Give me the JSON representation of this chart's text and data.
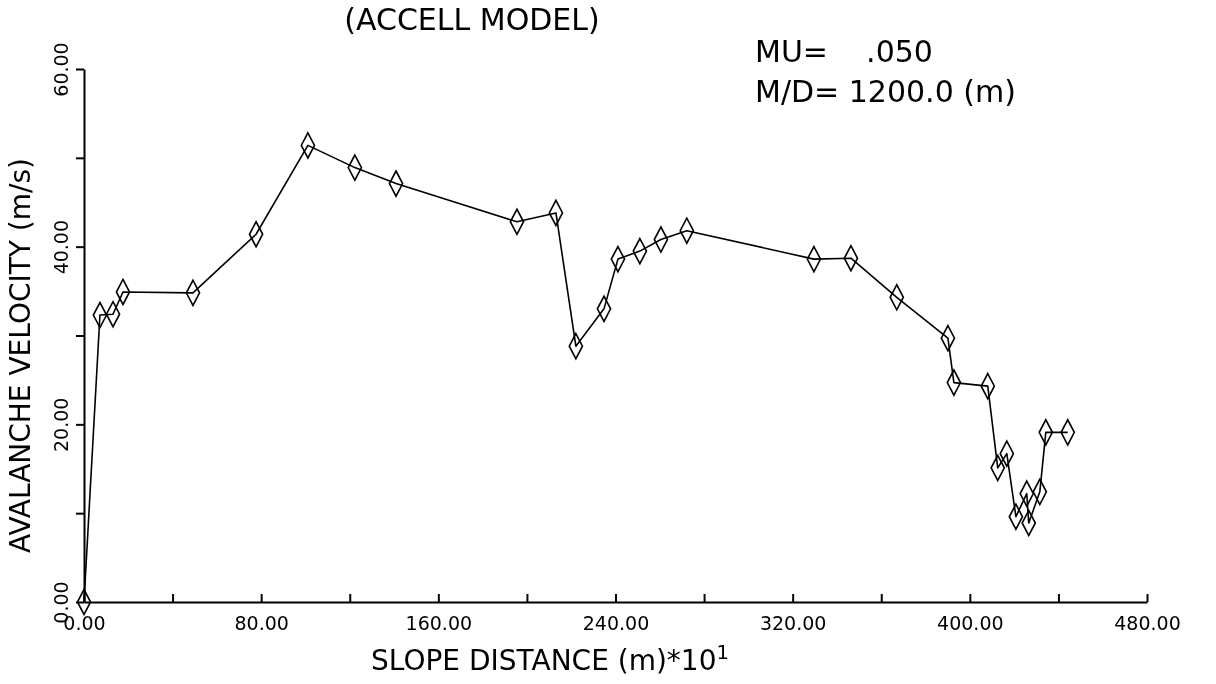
{
  "chart_data": {
    "type": "line",
    "title": "(ACCELL MODEL)",
    "xlabel": "SLOPE DISTANCE (m)*10$^{1}$",
    "ylabel": "AVALANCHE VELOCITY (m/s)",
    "annotations": [
      "MU=    .050",
      "M/D= 1200.0 (m)"
    ],
    "xlim": [
      0,
      480
    ],
    "ylim": [
      0,
      60
    ],
    "xticks": [
      {
        "value": 0,
        "label": "0.00"
      },
      {
        "value": 40,
        "label": null
      },
      {
        "value": 80,
        "label": "80.00"
      },
      {
        "value": 120,
        "label": null
      },
      {
        "value": 160,
        "label": "160.00"
      },
      {
        "value": 200,
        "label": null
      },
      {
        "value": 240,
        "label": "240.00"
      },
      {
        "value": 280,
        "label": null
      },
      {
        "value": 320,
        "label": "320.00"
      },
      {
        "value": 360,
        "label": null
      },
      {
        "value": 400,
        "label": "400.00"
      },
      {
        "value": 440,
        "label": null
      },
      {
        "value": 480,
        "label": "480.00"
      }
    ],
    "yticks": [
      {
        "value": 0,
        "label": "0.00"
      },
      {
        "value": 10,
        "label": null
      },
      {
        "value": 20,
        "label": "20.00"
      },
      {
        "value": 30,
        "label": null
      },
      {
        "value": 40,
        "label": "40.00"
      },
      {
        "value": 50,
        "label": null
      },
      {
        "value": 60,
        "label": "60.00"
      }
    ],
    "marker": "diamond",
    "grid": false,
    "series": [
      {
        "color": "#000000",
        "x": [
          0,
          7.2,
          13.1,
          17.6,
          49.2,
          77.7,
          101.1,
          122.3,
          140.9,
          195.5,
          213.1,
          222.1,
          234.8,
          241.1,
          251.0,
          260.5,
          272.2,
          329.6,
          346.3,
          367.0,
          390.1,
          392.8,
          408.1,
          412.6,
          416.7,
          420.8,
          425.7,
          426.6,
          431.6,
          434.3,
          444.2
        ],
        "values": [
          0,
          32.3,
          32.4,
          34.9,
          34.8,
          41.4,
          51.4,
          48.9,
          47.1,
          42.8,
          43.8,
          28.8,
          33.0,
          38.6,
          39.5,
          40.8,
          41.8,
          38.6,
          38.7,
          34.3,
          29.7,
          24.7,
          24.3,
          15.1,
          16.7,
          9.6,
          12.2,
          8.9,
          12.4,
          19.1,
          19.1
        ]
      }
    ]
  }
}
